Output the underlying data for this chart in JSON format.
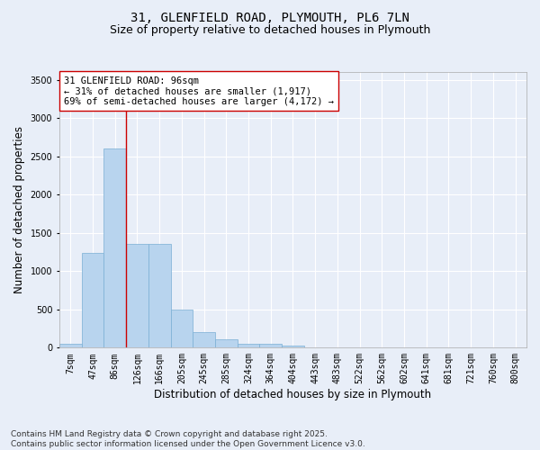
{
  "title_line1": "31, GLENFIELD ROAD, PLYMOUTH, PL6 7LN",
  "title_line2": "Size of property relative to detached houses in Plymouth",
  "xlabel": "Distribution of detached houses by size in Plymouth",
  "ylabel": "Number of detached properties",
  "bar_color": "#b8d4ee",
  "bar_edge_color": "#7aafd4",
  "background_color": "#e8eef8",
  "grid_color": "#ffffff",
  "categories": [
    "7sqm",
    "47sqm",
    "86sqm",
    "126sqm",
    "166sqm",
    "205sqm",
    "245sqm",
    "285sqm",
    "324sqm",
    "364sqm",
    "404sqm",
    "443sqm",
    "483sqm",
    "522sqm",
    "562sqm",
    "602sqm",
    "641sqm",
    "681sqm",
    "721sqm",
    "760sqm",
    "800sqm"
  ],
  "values": [
    55,
    1240,
    2600,
    1350,
    1350,
    500,
    200,
    110,
    55,
    50,
    30,
    0,
    0,
    0,
    0,
    0,
    0,
    0,
    0,
    0,
    0
  ],
  "ylim": [
    0,
    3600
  ],
  "yticks": [
    0,
    500,
    1000,
    1500,
    2000,
    2500,
    3000,
    3500
  ],
  "vline_position": 2.5,
  "vline_color": "#cc0000",
  "annotation_text_line1": "31 GLENFIELD ROAD: 96sqm",
  "annotation_text_line2": "← 31% of detached houses are smaller (1,917)",
  "annotation_text_line3": "69% of semi-detached houses are larger (4,172) →",
  "annotation_box_color": "#cc0000",
  "annotation_fill_color": "#ffffff",
  "footer_line1": "Contains HM Land Registry data © Crown copyright and database right 2025.",
  "footer_line2": "Contains public sector information licensed under the Open Government Licence v3.0.",
  "title_fontsize": 10,
  "subtitle_fontsize": 9,
  "axis_label_fontsize": 8.5,
  "tick_fontsize": 7,
  "annotation_fontsize": 7.5,
  "footer_fontsize": 6.5
}
